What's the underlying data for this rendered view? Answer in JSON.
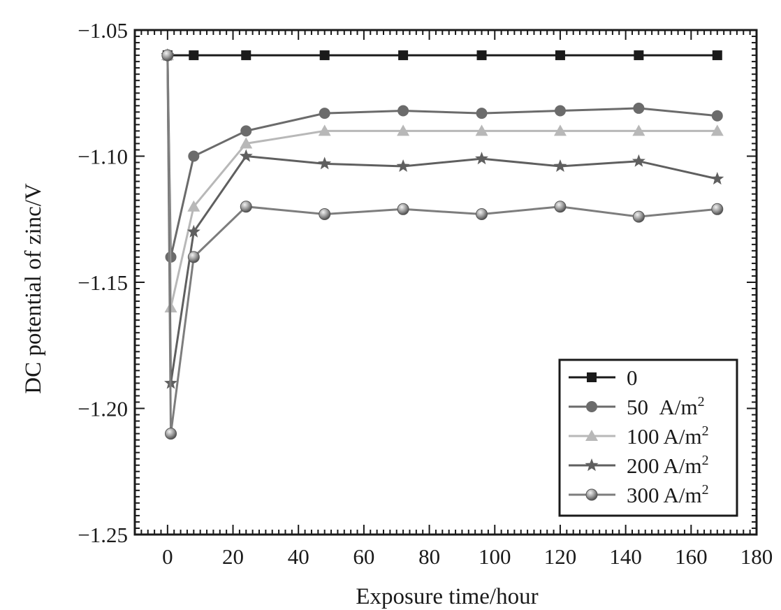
{
  "chart_data": {
    "type": "line",
    "xlabel": "Exposure time/hour",
    "ylabel": "DC potential of zinc/V",
    "xlim": [
      -10,
      180
    ],
    "ylim": [
      -1.25,
      -1.05
    ],
    "x_ticks": [
      0,
      20,
      40,
      60,
      80,
      100,
      120,
      140,
      160,
      180
    ],
    "x_tick_labels": [
      "0",
      "20",
      "40",
      "60",
      "80",
      "100",
      "120",
      "140",
      "160",
      "180"
    ],
    "y_ticks": [
      -1.05,
      -1.1,
      -1.15,
      -1.2,
      -1.25
    ],
    "y_tick_labels": [
      "−1.05",
      "−1.10",
      "−1.15",
      "−1.20",
      "−1.25"
    ],
    "grid": false,
    "legend_position": "bottom-right",
    "series": [
      {
        "name": "0",
        "unit_base": "",
        "unit_exp": "",
        "marker": "square",
        "color": "#1a1a1a",
        "x": [
          0,
          8,
          24,
          48,
          72,
          96,
          120,
          144,
          168
        ],
        "y": [
          -1.06,
          -1.06,
          -1.06,
          -1.06,
          -1.06,
          -1.06,
          -1.06,
          -1.06,
          -1.06
        ]
      },
      {
        "name": "50",
        "unit_base": "A/m",
        "unit_exp": "2",
        "marker": "circle",
        "color": "#6b6b6b",
        "x": [
          0,
          1,
          8,
          24,
          48,
          72,
          96,
          120,
          144,
          168
        ],
        "y": [
          -1.06,
          -1.14,
          -1.1,
          -1.09,
          -1.083,
          -1.082,
          -1.083,
          -1.082,
          -1.081,
          -1.084
        ]
      },
      {
        "name": "100",
        "unit_base": "A/m",
        "unit_exp": "2",
        "marker": "triangle",
        "color": "#b8b8b8",
        "x": [
          0,
          1,
          8,
          24,
          48,
          72,
          96,
          120,
          144,
          168
        ],
        "y": [
          -1.06,
          -1.16,
          -1.12,
          -1.095,
          -1.09,
          -1.09,
          -1.09,
          -1.09,
          -1.09,
          -1.09
        ]
      },
      {
        "name": "200",
        "unit_base": "A/m",
        "unit_exp": "2",
        "marker": "star",
        "color": "#5f5f5f",
        "x": [
          0,
          1,
          8,
          24,
          48,
          72,
          96,
          120,
          144,
          168
        ],
        "y": [
          -1.06,
          -1.19,
          -1.13,
          -1.1,
          -1.103,
          -1.104,
          -1.101,
          -1.104,
          -1.102,
          -1.109
        ]
      },
      {
        "name": "300",
        "unit_base": "A/m",
        "unit_exp": "2",
        "marker": "sphere",
        "color": "#7d7d7d",
        "x": [
          0,
          1,
          8,
          24,
          48,
          72,
          96,
          120,
          144,
          168
        ],
        "y": [
          -1.06,
          -1.21,
          -1.14,
          -1.12,
          -1.123,
          -1.121,
          -1.123,
          -1.12,
          -1.124,
          -1.121
        ]
      }
    ]
  }
}
